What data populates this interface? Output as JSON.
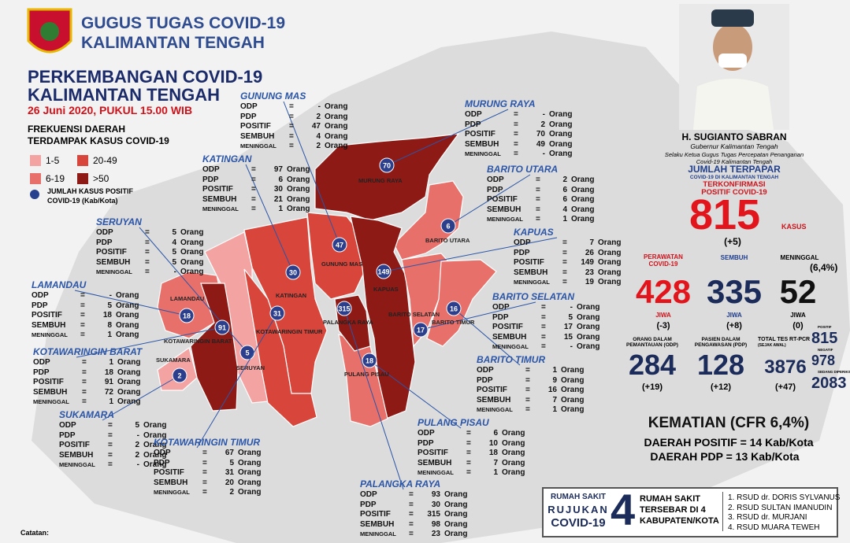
{
  "header": {
    "org_line1": "GUGUS TUGAS COVID-19",
    "org_line2": "KALIMANTAN TENGAH",
    "title_line1": "PERKEMBANGAN COVID-19",
    "title_line2": "KALIMANTAN TENGAH",
    "date": "26 Juni 2020, PUKUL 15.00 WIB"
  },
  "legend": {
    "title_line1": "FREKUENSI DAERAH",
    "title_line2": "TERDAMPAK KASUS COVID-19",
    "items": [
      {
        "label": "1-5",
        "color": "#f4a3a3"
      },
      {
        "label": "20-49",
        "color": "#d8453b"
      },
      {
        "label": "6-19",
        "color": "#e8706a"
      },
      {
        "label": ">50",
        "color": "#8e1a16"
      }
    ],
    "bubble_note_line1": "JUMLAH KASUS POSITIF",
    "bubble_note_line2": "COVID-19 (Kab/Kota)"
  },
  "stat_labels": [
    "ODP",
    "PDP",
    "POSITIF",
    "SEMBUH",
    "MENINGGAL"
  ],
  "unit": "Orang",
  "regions": [
    {
      "name": "GUNUNG MAS",
      "stats": [
        "-",
        2,
        47,
        4,
        2
      ],
      "color": "#d8453b"
    },
    {
      "name": "MURUNG RAYA",
      "stats": [
        "-",
        2,
        70,
        49,
        "-"
      ],
      "color": "#8e1a16"
    },
    {
      "name": "KATINGAN",
      "stats": [
        97,
        6,
        30,
        21,
        1
      ],
      "color": "#d8453b"
    },
    {
      "name": "BARITO UTARA",
      "stats": [
        2,
        6,
        6,
        4,
        1
      ],
      "color": "#e8706a"
    },
    {
      "name": "SERUYAN",
      "stats": [
        5,
        4,
        5,
        5,
        "-"
      ],
      "color": "#f4a3a3"
    },
    {
      "name": "KAPUAS",
      "stats": [
        7,
        26,
        149,
        23,
        19
      ],
      "color": "#8e1a16"
    },
    {
      "name": "LAMANDAU",
      "stats": [
        "-",
        5,
        18,
        8,
        1
      ],
      "color": "#e8706a"
    },
    {
      "name": "BARITO SELATAN",
      "stats": [
        "-",
        5,
        17,
        15,
        "-"
      ],
      "color": "#e8706a"
    },
    {
      "name": "KOTAWARINGIN BARAT",
      "stats": [
        1,
        18,
        91,
        72,
        1
      ],
      "color": "#8e1a16"
    },
    {
      "name": "BARITO TIMUR",
      "stats": [
        1,
        9,
        16,
        7,
        1
      ],
      "color": "#e8706a"
    },
    {
      "name": "SUKAMARA",
      "stats": [
        5,
        "-",
        2,
        2,
        "-"
      ],
      "color": "#f4a3a3"
    },
    {
      "name": "PULANG PISAU",
      "stats": [
        6,
        10,
        18,
        7,
        1
      ],
      "color": "#e8706a"
    },
    {
      "name": "KOTAWARINGIN TIMUR",
      "stats": [
        67,
        5,
        31,
        20,
        2
      ],
      "color": "#d8453b"
    },
    {
      "name": "PALANGKA RAYA",
      "stats": [
        93,
        30,
        315,
        98,
        23
      ],
      "color": "#8e1a16"
    }
  ],
  "governor": {
    "name": "H. SUGIANTO SABRAN",
    "role": "Gubernur Kalimantan Tengah",
    "role2": "Selaku Ketua Gugus Tugas Percepatan Penanganan Covid-19 Kalimantan Tengah"
  },
  "summary": {
    "title": "JUMLAH TERPAPAR",
    "subtitle": "COVID-19 DI KALIMANTAN TENGAH",
    "confirmed_label": "TERKONFIRMASI POSITIF COVID-19",
    "confirmed": 815,
    "confirmed_unit": "KASUS",
    "confirmed_change": "(+5)",
    "treated": {
      "label": "PERAWATAN COVID-19",
      "value": 428,
      "unit": "JIWA",
      "change": "(-3)"
    },
    "recovered": {
      "label": "SEMBUH",
      "value": 335,
      "unit": "JIWA",
      "change": "(+8)"
    },
    "deaths": {
      "label": "MENINGGAL",
      "rate": "(6,4%)",
      "value": 52,
      "unit": "JIWA",
      "change": "(0)"
    },
    "odp": {
      "label": "ORANG DALAM PEMANTAUAN (ODP)",
      "value": 284,
      "change": "(+19)"
    },
    "pdp": {
      "label": "PASIEN DALAM PENGAWASAN (PDP)",
      "value": 128,
      "change": "(+12)"
    },
    "tests": {
      "label": "TOTAL TES RT-PCR",
      "sublabel": "(SEJAK AWAL)",
      "value": 3876,
      "change": "(+47)",
      "breakdown": [
        {
          "label": "POSITIF",
          "value": 815
        },
        {
          "label": "NEGATIF",
          "value": 978
        },
        {
          "label": "SEDANG DIPERIKSA",
          "value": 2083
        }
      ]
    }
  },
  "mortality": {
    "title": "KEMATIAN (CFR 6,4%)",
    "positive_areas": "DAERAH POSITIF = 14 Kab/Kota",
    "pdp_areas": "DAERAH PDP = 13 Kab/Kota"
  },
  "hospitals": {
    "label_line1": "RUMAH SAKIT",
    "label_line2": "RUJUKAN",
    "label_line3": "COVID-19",
    "count": 4,
    "desc_line1": "RUMAH SAKIT",
    "desc_line2": "TERSEBAR DI 4",
    "desc_line3": "KABUPATEN/KOTA",
    "list": [
      "1. RSUD dr. DORIS SYLVANUS",
      "2. RSUD SULTAN IMANUDIN",
      "3. RSUD dr. MURJANI",
      "4. RSUD MUARA TEWEH"
    ]
  },
  "note": "Catatan:"
}
